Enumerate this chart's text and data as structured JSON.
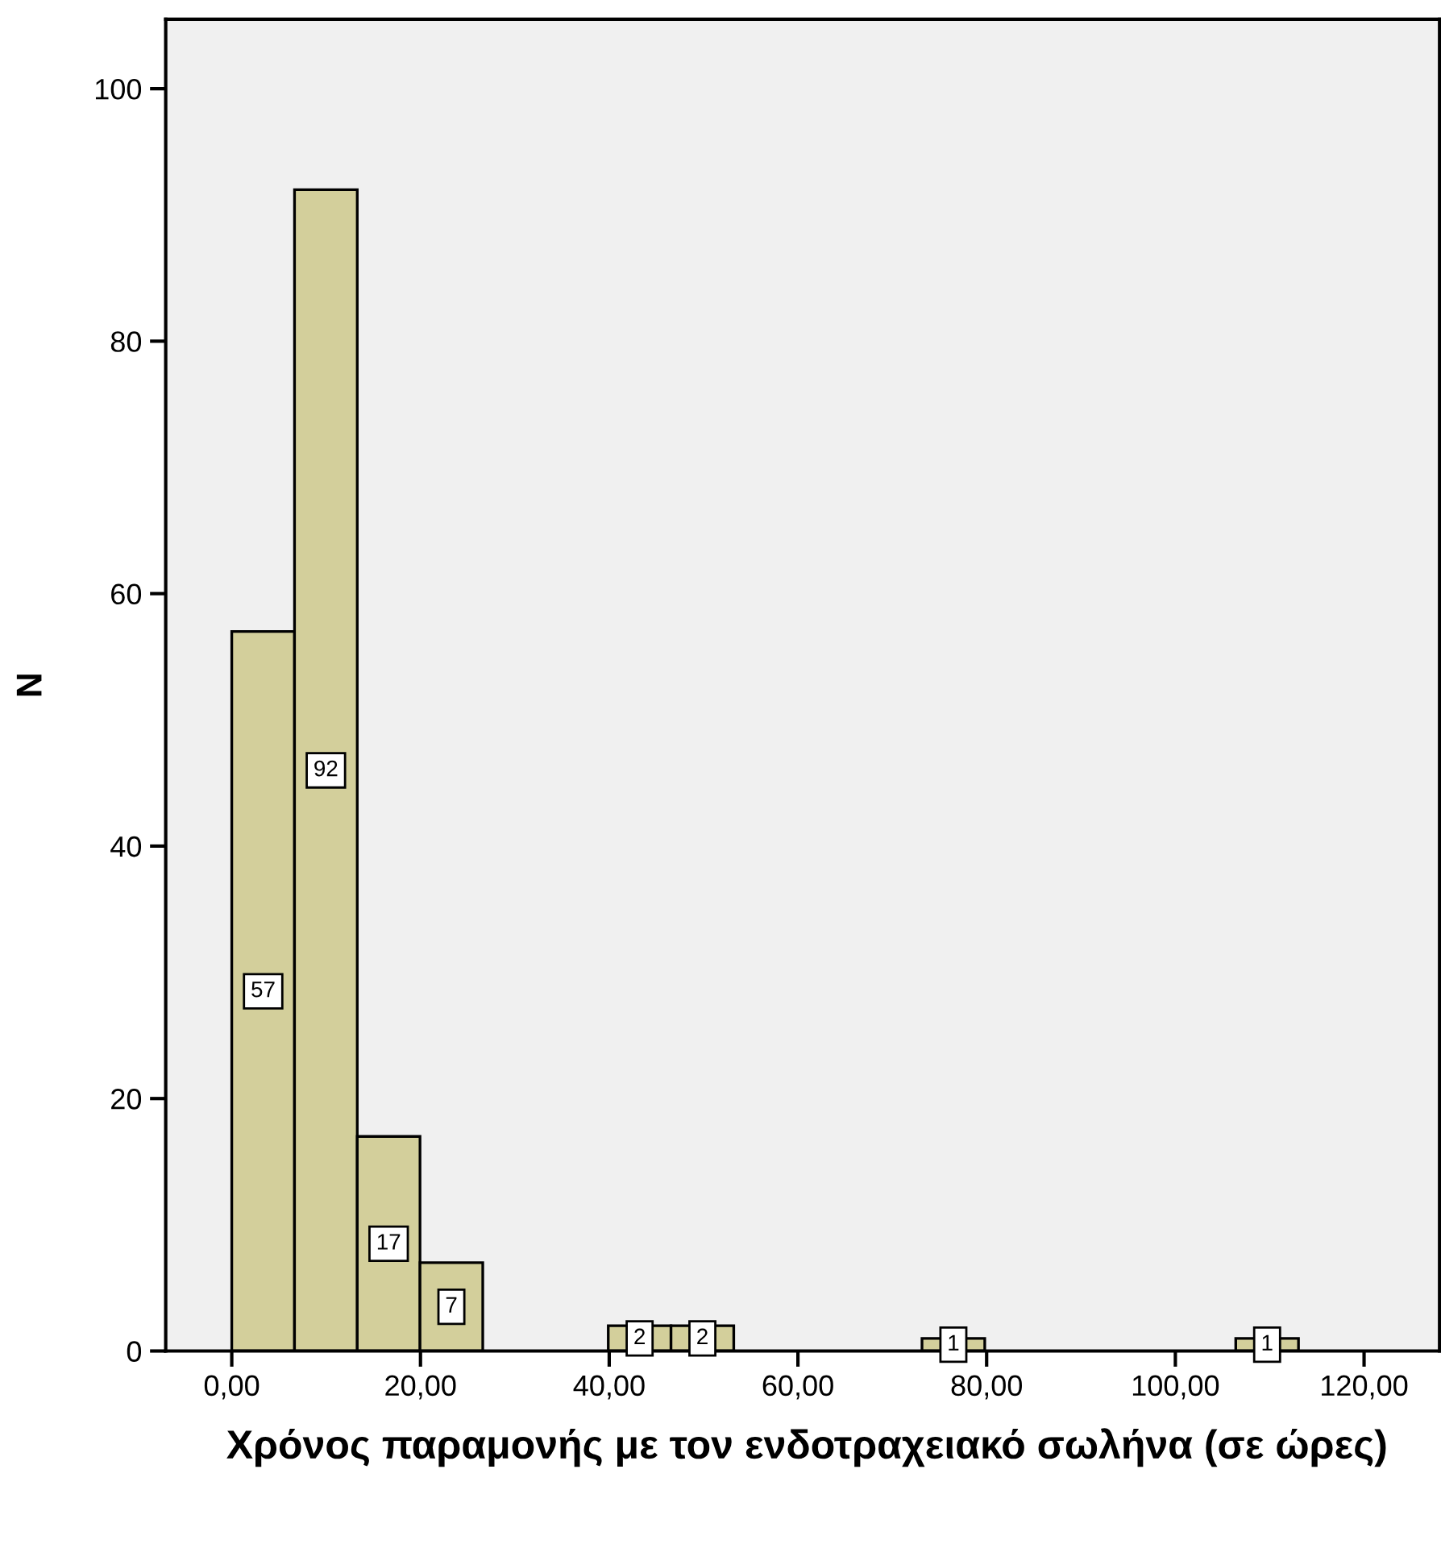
{
  "chart_data": {
    "type": "histogram",
    "xlabel": "Χρόνος παραμονής με τον ενδοτραχειακό σωλήνα (σε ώρες)",
    "ylabel": "N",
    "bins": [
      0,
      6.65,
      13.3,
      19.95,
      26.6,
      33.25,
      39.9,
      46.55,
      53.2,
      59.85,
      66.5,
      73.15,
      79.8,
      86.45,
      93.1,
      99.75,
      106.4,
      113.05
    ],
    "values": [
      57,
      92,
      17,
      7,
      0,
      0,
      2,
      2,
      0,
      0,
      0,
      1,
      0,
      0,
      0,
      0,
      1
    ],
    "value_labels": [
      "57",
      "92",
      "17",
      "7",
      null,
      null,
      "2",
      "2",
      null,
      null,
      null,
      "1",
      null,
      null,
      null,
      null,
      "1"
    ],
    "color": "#d3cf9b",
    "xlim": [
      -7,
      128
    ],
    "xticks": [
      {
        "value": 0,
        "label": "0,00"
      },
      {
        "value": 20,
        "label": "20,00"
      },
      {
        "value": 40,
        "label": "40,00"
      },
      {
        "value": 60,
        "label": "60,00"
      },
      {
        "value": 80,
        "label": "80,00"
      },
      {
        "value": 100,
        "label": "100,00"
      },
      {
        "value": 120,
        "label": "120,00"
      }
    ],
    "ylim": [
      0,
      105.5
    ],
    "yticks": [
      0,
      20,
      40,
      60,
      80,
      100
    ],
    "grid": false
  }
}
